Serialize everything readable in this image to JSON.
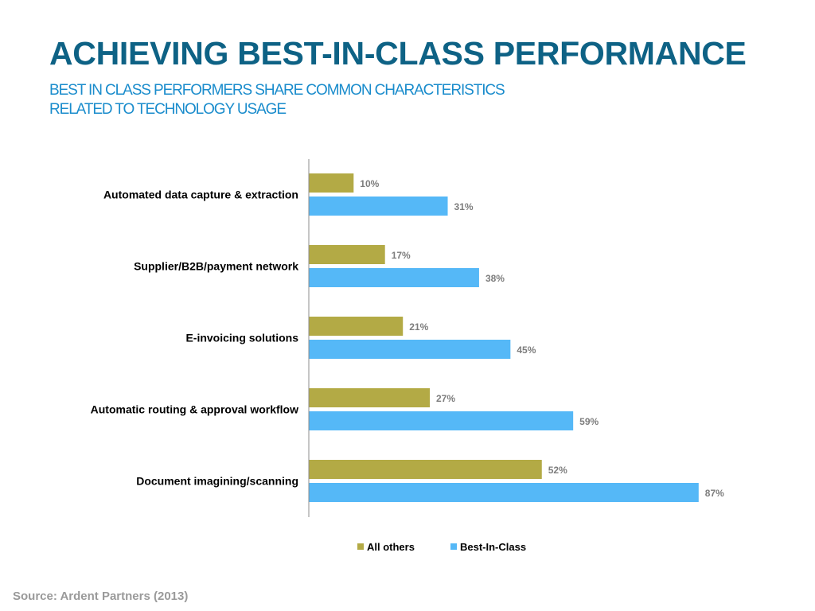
{
  "header": {
    "title": "ACHIEVING BEST-IN-CLASS PERFORMANCE",
    "subtitle_line1": "BEST IN CLASS PERFORMERS SHARE COMMON CHARACTERISTICS",
    "subtitle_line2": "RELATED TO TECHNOLOGY USAGE"
  },
  "footer": {
    "source": "Source: Ardent Partners (2013)"
  },
  "colors": {
    "title": "#0e6285",
    "subtitle": "#1a8ccc",
    "all_others": "#b3aa45",
    "best_in_class": "#55b8f7"
  },
  "chart_data": {
    "type": "bar",
    "orientation": "horizontal",
    "categories": [
      "Automated data capture & extraction",
      "Supplier/B2B/payment network",
      "E-invoicing solutions",
      "Automatic routing & approval workflow",
      "Document imagining/scanning"
    ],
    "series": [
      {
        "name": "All others",
        "values": [
          10,
          17,
          21,
          27,
          52
        ],
        "color": "#b3aa45"
      },
      {
        "name": "Best-In-Class",
        "values": [
          31,
          38,
          45,
          59,
          87
        ],
        "color": "#55b8f7"
      }
    ],
    "value_suffix": "%",
    "xlim": [
      0,
      100
    ],
    "grid": false,
    "legend": "bottom"
  }
}
